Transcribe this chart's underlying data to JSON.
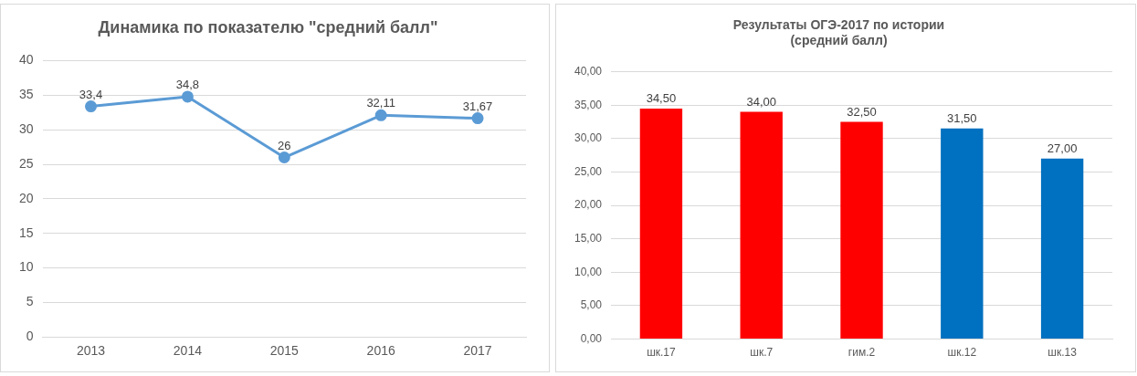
{
  "chart_data": [
    {
      "type": "line",
      "title": "Динамика по показателю \"средний балл\"",
      "categories": [
        "2013",
        "2014",
        "2015",
        "2016",
        "2017"
      ],
      "series": [
        {
          "color": "#5b9bd5",
          "values": [
            33.4,
            34.8,
            26,
            32.11,
            31.67
          ],
          "value_labels": [
            "33,4",
            "34,8",
            "26",
            "32,11",
            "31,67"
          ]
        }
      ],
      "ylim": [
        0,
        40
      ],
      "yticks": [
        0,
        5,
        10,
        15,
        20,
        25,
        30,
        35,
        40
      ],
      "grid": "y",
      "legend": false,
      "marker": "circle",
      "line_style": "solid"
    },
    {
      "type": "bar",
      "title": "Результаты ОГЭ-2017 по истории\n(средний балл)",
      "categories": [
        "шк.17",
        "шк.7",
        "гим.2",
        "шк.12",
        "шк.13"
      ],
      "values": [
        34.5,
        34,
        32.5,
        31.5,
        27
      ],
      "colors": [
        "#ff0000",
        "#ff0000",
        "#ff0000",
        "#0070c0",
        "#0070c0"
      ],
      "value_labels": [
        "34,50",
        "34,00",
        "32,50",
        "31,50",
        "27,00"
      ],
      "ylim": [
        0,
        40
      ],
      "yticks": [
        {
          "value": 0,
          "label": "0,00"
        },
        {
          "value": 5,
          "label": "5,00"
        },
        {
          "value": 10,
          "label": "10,00"
        },
        {
          "value": 15,
          "label": "15,00"
        },
        {
          "value": 20,
          "label": "20,00"
        },
        {
          "value": 25,
          "label": "25,00"
        },
        {
          "value": 30,
          "label": "30,00"
        },
        {
          "value": 35,
          "label": "35,00"
        },
        {
          "value": 40,
          "label": "40,00"
        }
      ],
      "grid": "y",
      "legend": false
    }
  ]
}
